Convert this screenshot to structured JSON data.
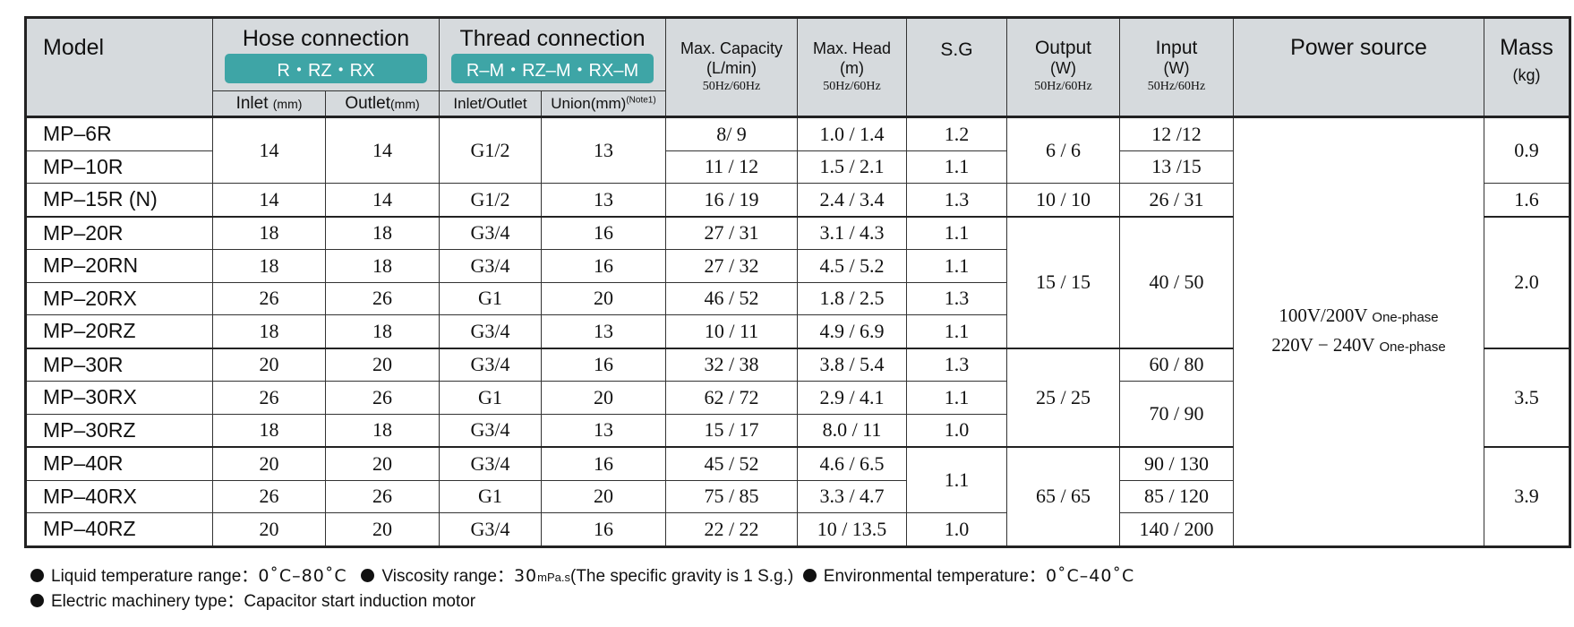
{
  "header": {
    "model": "Model",
    "hose": "Hose connection",
    "hose_types": "R・RZ・RX",
    "inlet": "Inlet",
    "inlet_unit": "(mm)",
    "outlet": "Outlet",
    "outlet_unit": "(mm)",
    "thread": "Thread connection",
    "thread_types": "R–M・RZ–M・RX–M",
    "inlet_outlet": "Inlet/Outlet",
    "union": "Union(mm)",
    "union_note": "(Note1)",
    "capacity": "Max. Capacity",
    "capacity_unit": "(L/min)",
    "head": "Max. Head",
    "head_unit": "(m)",
    "sg": "S.G",
    "output": "Output",
    "output_unit": "(W)",
    "input": "Input",
    "input_unit": "(W)",
    "freq": "50Hz/60Hz",
    "power": "Power source",
    "mass": "Mass",
    "mass_unit": "(kg)"
  },
  "table": {
    "power_source": {
      "voltage1": "100V/200V",
      "phase1": "One-phase",
      "voltage2": "220V − 240V",
      "phase2": "One-phase"
    },
    "rows": [
      {
        "model": "MP–6R",
        "inlet": "14",
        "outlet": "14",
        "thread": "G1/2",
        "union": "13",
        "capacity": "8/ 9",
        "head": "1.0 / 1.4",
        "sg": "1.2",
        "output": "6 / 6",
        "input": "12 /12",
        "mass": "0.9"
      },
      {
        "model": "MP–10R",
        "capacity": "11 / 12",
        "head": "1.5 / 2.1",
        "sg": "1.1",
        "input": "13 /15"
      },
      {
        "model": "MP–15R (N)",
        "inlet": "14",
        "outlet": "14",
        "thread": "G1/2",
        "union": "13",
        "capacity": "16 / 19",
        "head": "2.4 / 3.4",
        "sg": "1.3",
        "output": "10 / 10",
        "input": "26 / 31",
        "mass": "1.6"
      },
      {
        "model": "MP–20R",
        "inlet": "18",
        "outlet": "18",
        "thread": "G3/4",
        "union": "16",
        "capacity": "27 / 31",
        "head": "3.1 / 4.3",
        "sg": "1.1",
        "output": "15 / 15",
        "input": "40 / 50",
        "mass": "2.0"
      },
      {
        "model": "MP–20RN",
        "inlet": "18",
        "outlet": "18",
        "thread": "G3/4",
        "union": "16",
        "capacity": "27 / 32",
        "head": "4.5 / 5.2",
        "sg": "1.1"
      },
      {
        "model": "MP–20RX",
        "inlet": "26",
        "outlet": "26",
        "thread": "G1",
        "union": "20",
        "capacity": "46 / 52",
        "head": "1.8 / 2.5",
        "sg": "1.3"
      },
      {
        "model": "MP–20RZ",
        "inlet": "18",
        "outlet": "18",
        "thread": "G3/4",
        "union": "13",
        "capacity": "10 / 11",
        "head": "4.9 / 6.9",
        "sg": "1.1"
      },
      {
        "model": "MP–30R",
        "inlet": "20",
        "outlet": "20",
        "thread": "G3/4",
        "union": "16",
        "capacity": "32 / 38",
        "head": "3.8 / 5.4",
        "sg": "1.3",
        "output": "25 / 25",
        "input": "60 / 80",
        "mass": "3.5"
      },
      {
        "model": "MP–30RX",
        "inlet": "26",
        "outlet": "26",
        "thread": "G1",
        "union": "20",
        "capacity": "62 / 72",
        "head": "2.9 / 4.1",
        "sg": "1.1",
        "input": "70 / 90"
      },
      {
        "model": "MP–30RZ",
        "inlet": "18",
        "outlet": "18",
        "thread": "G3/4",
        "union": "13",
        "capacity": "15 / 17",
        "head": "8.0 / 11",
        "sg": "1.0"
      },
      {
        "model": "MP–40R",
        "inlet": "20",
        "outlet": "20",
        "thread": "G3/4",
        "union": "16",
        "capacity": "45 / 52",
        "head": "4.6 / 6.5",
        "sg": "1.1",
        "output": "65 / 65",
        "input": "90 / 130",
        "mass": "3.9"
      },
      {
        "model": "MP–40RX",
        "inlet": "26",
        "outlet": "26",
        "thread": "G1",
        "union": "20",
        "capacity": "75 / 85",
        "head": "3.3 / 4.7",
        "input": "85 / 120"
      },
      {
        "model": "MP–40RZ",
        "inlet": "20",
        "outlet": "20",
        "thread": "G3/4",
        "union": "16",
        "capacity": "22 / 22",
        "head": "10 / 13.5",
        "sg": "1.0",
        "input": "140 / 200"
      }
    ]
  },
  "notes": {
    "liquid_label": "Liquid temperature range：",
    "liquid_value": "0˚C–80˚C",
    "viscosity_label": "Viscosity range：",
    "viscosity_value": "30",
    "viscosity_unit": "mPa.s",
    "viscosity_extra": "(The specific gravity is 1 S.g.)",
    "env_label": "Environmental temperature：",
    "env_value": "0˚C–40˚C",
    "motor_label": "Electric machinery type：",
    "motor_value": "Capacitor start induction motor"
  }
}
